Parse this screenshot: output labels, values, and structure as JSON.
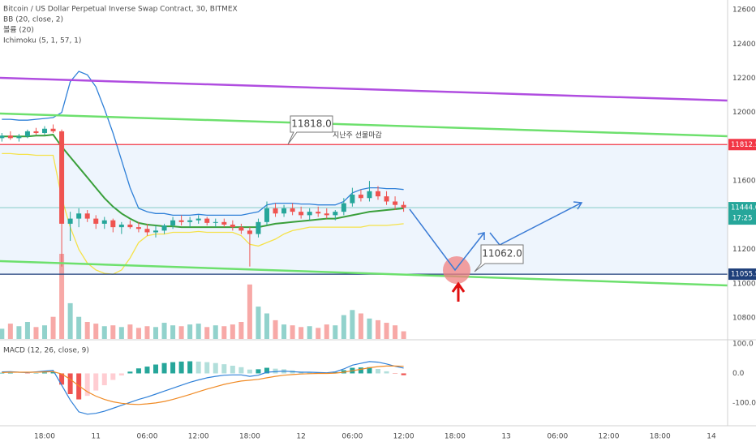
{
  "chart_data": {
    "type": "candlestick",
    "title": "Bitcoin / US Dollar Perpetual Inverse Swap Contract, 30, BITMEX",
    "up_color": "#26a69a",
    "down_color": "#ef5350",
    "open": [
      11850,
      11865,
      11850,
      11860,
      11890,
      11880,
      11905,
      11890,
      11350,
      11380,
      11410,
      11380,
      11350,
      11370,
      11330,
      11345,
      11330,
      11320,
      11300,
      11310,
      11340,
      11370,
      11360,
      11370,
      11380,
      11355,
      11360,
      11345,
      11330,
      11310,
      11290,
      11360,
      11440,
      11410,
      11440,
      11420,
      11400,
      11420,
      11410,
      11400,
      11420,
      11470,
      11520,
      11500,
      11540,
      11510,
      11480,
      11460
    ],
    "high": [
      11880,
      11890,
      11875,
      11900,
      11910,
      11920,
      11930,
      11900,
      11420,
      11440,
      11430,
      11400,
      11390,
      11380,
      11360,
      11370,
      11360,
      11350,
      11340,
      11350,
      11390,
      11400,
      11390,
      11400,
      11390,
      11380,
      11380,
      11370,
      11350,
      11330,
      11380,
      11480,
      11470,
      11460,
      11470,
      11450,
      11440,
      11450,
      11440,
      11430,
      11500,
      11560,
      11550,
      11600,
      11570,
      11540,
      11510,
      11480
    ],
    "low": [
      11830,
      11840,
      11830,
      11850,
      11870,
      11870,
      11880,
      11100,
      11250,
      11330,
      11360,
      11320,
      11320,
      11300,
      11290,
      11320,
      11300,
      11280,
      11270,
      11290,
      11320,
      11340,
      11330,
      11350,
      11340,
      11330,
      11330,
      11310,
      11290,
      11100,
      11270,
      11340,
      11390,
      11390,
      11400,
      11380,
      11370,
      11390,
      11380,
      11370,
      11400,
      11450,
      11480,
      11480,
      11490,
      11460,
      11430,
      11420
    ],
    "close": [
      11865,
      11850,
      11860,
      11890,
      11880,
      11905,
      11890,
      11350,
      11380,
      11410,
      11380,
      11350,
      11370,
      11330,
      11345,
      11330,
      11320,
      11300,
      11310,
      11340,
      11370,
      11360,
      11370,
      11380,
      11355,
      11360,
      11345,
      11330,
      11310,
      11290,
      11360,
      11440,
      11410,
      11440,
      11420,
      11400,
      11420,
      11410,
      11400,
      11420,
      11470,
      11520,
      11500,
      11540,
      11510,
      11480,
      11460,
      11444
    ],
    "volume": {
      "name": "볼륨 (20)",
      "values": [
        120,
        180,
        150,
        200,
        140,
        160,
        260,
        1000,
        420,
        260,
        200,
        180,
        150,
        160,
        140,
        170,
        130,
        150,
        140,
        190,
        160,
        150,
        170,
        180,
        140,
        160,
        150,
        170,
        200,
        640,
        380,
        300,
        220,
        170,
        160,
        140,
        150,
        130,
        170,
        160,
        280,
        340,
        300,
        240,
        220,
        190,
        160,
        90
      ]
    },
    "indicators": [
      {
        "name": "BB (20, close, 2)",
        "series": [
          {
            "color": "#2f80d8",
            "values": [
              11960,
              11960,
              11955,
              11955,
              11960,
              11965,
              11970,
              12000,
              12180,
              12240,
              12220,
              12150,
              12020,
              11880,
              11720,
              11560,
              11440,
              11420,
              11410,
              11410,
              11400,
              11400,
              11400,
              11405,
              11400,
              11400,
              11400,
              11400,
              11400,
              11410,
              11420,
              11460,
              11470,
              11470,
              11470,
              11465,
              11465,
              11460,
              11460,
              11460,
              11480,
              11530,
              11550,
              11560,
              11560,
              11555,
              11555,
              11550
            ]
          },
          {
            "color": "#f5e24a",
            "values": [
              11760,
              11760,
              11755,
              11755,
              11750,
              11750,
              11750,
              11500,
              11330,
              11200,
              11120,
              11080,
              11060,
              11055,
              11080,
              11150,
              11240,
              11280,
              11290,
              11290,
              11300,
              11300,
              11300,
              11305,
              11300,
              11300,
              11300,
              11300,
              11280,
              11230,
              11220,
              11240,
              11260,
              11290,
              11310,
              11320,
              11330,
              11330,
              11330,
              11330,
              11330,
              11330,
              11330,
              11340,
              11340,
              11340,
              11345,
              11350
            ]
          },
          {
            "color": "#3a9f3a",
            "values": [
              11860,
              11860,
              11860,
              11860,
              11865,
              11865,
              11870,
              11800,
              11740,
              11680,
              11620,
              11560,
              11500,
              11450,
              11410,
              11380,
              11355,
              11345,
              11340,
              11335,
              11335,
              11330,
              11330,
              11330,
              11330,
              11330,
              11330,
              11330,
              11330,
              11330,
              11330,
              11340,
              11350,
              11355,
              11360,
              11365,
              11370,
              11375,
              11380,
              11380,
              11390,
              11400,
              11410,
              11420,
              11425,
              11430,
              11435,
              11440
            ]
          }
        ]
      },
      {
        "name": "Ichimoku (5, 1, 57, 1)"
      }
    ],
    "xlim": [
      -0.22,
      84.9
    ],
    "xticks": [
      {
        "value": 5,
        "label": "18:00"
      },
      {
        "value": 11,
        "label": "11"
      },
      {
        "value": 17,
        "label": "06:00"
      },
      {
        "value": 23,
        "label": "12:00"
      },
      {
        "value": 29,
        "label": "18:00"
      },
      {
        "value": 35,
        "label": "12"
      },
      {
        "value": 41,
        "label": "06:00"
      },
      {
        "value": 47,
        "label": "12:00"
      },
      {
        "value": 53,
        "label": "18:00"
      },
      {
        "value": 59,
        "label": "13"
      },
      {
        "value": 65,
        "label": "06:00"
      },
      {
        "value": 71,
        "label": "12:00"
      },
      {
        "value": 77,
        "label": "18:00"
      },
      {
        "value": 83,
        "label": "14"
      }
    ],
    "ylim": [
      10677,
      12657
    ],
    "yticks": [
      {
        "value": 10800,
        "label": "10800.0"
      },
      {
        "value": 11000,
        "label": "11000.0"
      },
      {
        "value": 11200,
        "label": "11200.0"
      },
      {
        "value": 11400,
        "label": "11400.0"
      },
      {
        "value": 11600,
        "label": "11600.0"
      },
      {
        "value": 11800,
        "label": "11800.0"
      },
      {
        "value": 12000,
        "label": "12000.0"
      },
      {
        "value": 12200,
        "label": "12200.0"
      },
      {
        "value": 12400,
        "label": "12400.0"
      },
      {
        "value": 12600,
        "label": "12600.0"
      }
    ],
    "grid": true,
    "levels": [
      {
        "value": 11812.5,
        "label": "11812.5",
        "color": "#f23645"
      },
      {
        "value": 11055.5,
        "label": "11055.5",
        "color": "#1e3f7a"
      }
    ],
    "last_price": {
      "value": 11444,
      "label": "11444.0",
      "color": "#26a69a"
    },
    "countdown": "17:25",
    "annotations": [
      {
        "text": "11818.0"
      },
      {
        "text": "지난주 선물마감"
      },
      {
        "text": "11062.0"
      }
    ],
    "macd": {
      "name": "MACD (12, 26, close, 9)",
      "ylim": [
        -177,
        111
      ],
      "yticks": [
        {
          "value": 100,
          "label": "100.0"
        },
        {
          "value": 0,
          "label": "0.0"
        },
        {
          "value": -100,
          "label": "-100.0"
        }
      ],
      "macd": {
        "color": "#2f80d8",
        "values": [
          5,
          6,
          4,
          3,
          5,
          8,
          10,
          -40,
          -90,
          -130,
          -138,
          -135,
          -128,
          -118,
          -108,
          -98,
          -88,
          -80,
          -70,
          -60,
          -50,
          -40,
          -30,
          -22,
          -15,
          -10,
          -6,
          -5,
          -5,
          -10,
          -6,
          4,
          6,
          8,
          6,
          4,
          4,
          3,
          2,
          5,
          15,
          28,
          34,
          40,
          38,
          32,
          24,
          18
        ]
      },
      "signal": {
        "color": "#f08a24",
        "values": [
          3,
          4,
          4,
          4,
          4,
          5,
          6,
          -2,
          -20,
          -42,
          -62,
          -77,
          -88,
          -96,
          -101,
          -104,
          -105,
          -103,
          -100,
          -95,
          -88,
          -80,
          -71,
          -62,
          -53,
          -45,
          -37,
          -31,
          -26,
          -23,
          -20,
          -15,
          -10,
          -6,
          -4,
          -2,
          -1,
          0,
          0,
          1,
          4,
          9,
          14,
          19,
          23,
          25,
          25,
          24
        ]
      },
      "histogram": {
        "values": [
          2,
          2,
          0,
          -1,
          1,
          3,
          4,
          -38,
          -70,
          -88,
          -76,
          -58,
          -40,
          -22,
          -7,
          6,
          17,
          23,
          30,
          35,
          38,
          40,
          41,
          40,
          38,
          35,
          31,
          26,
          21,
          13,
          14,
          19,
          16,
          14,
          10,
          6,
          5,
          3,
          2,
          4,
          11,
          19,
          20,
          21,
          15,
          7,
          -1,
          -6
        ]
      }
    }
  }
}
